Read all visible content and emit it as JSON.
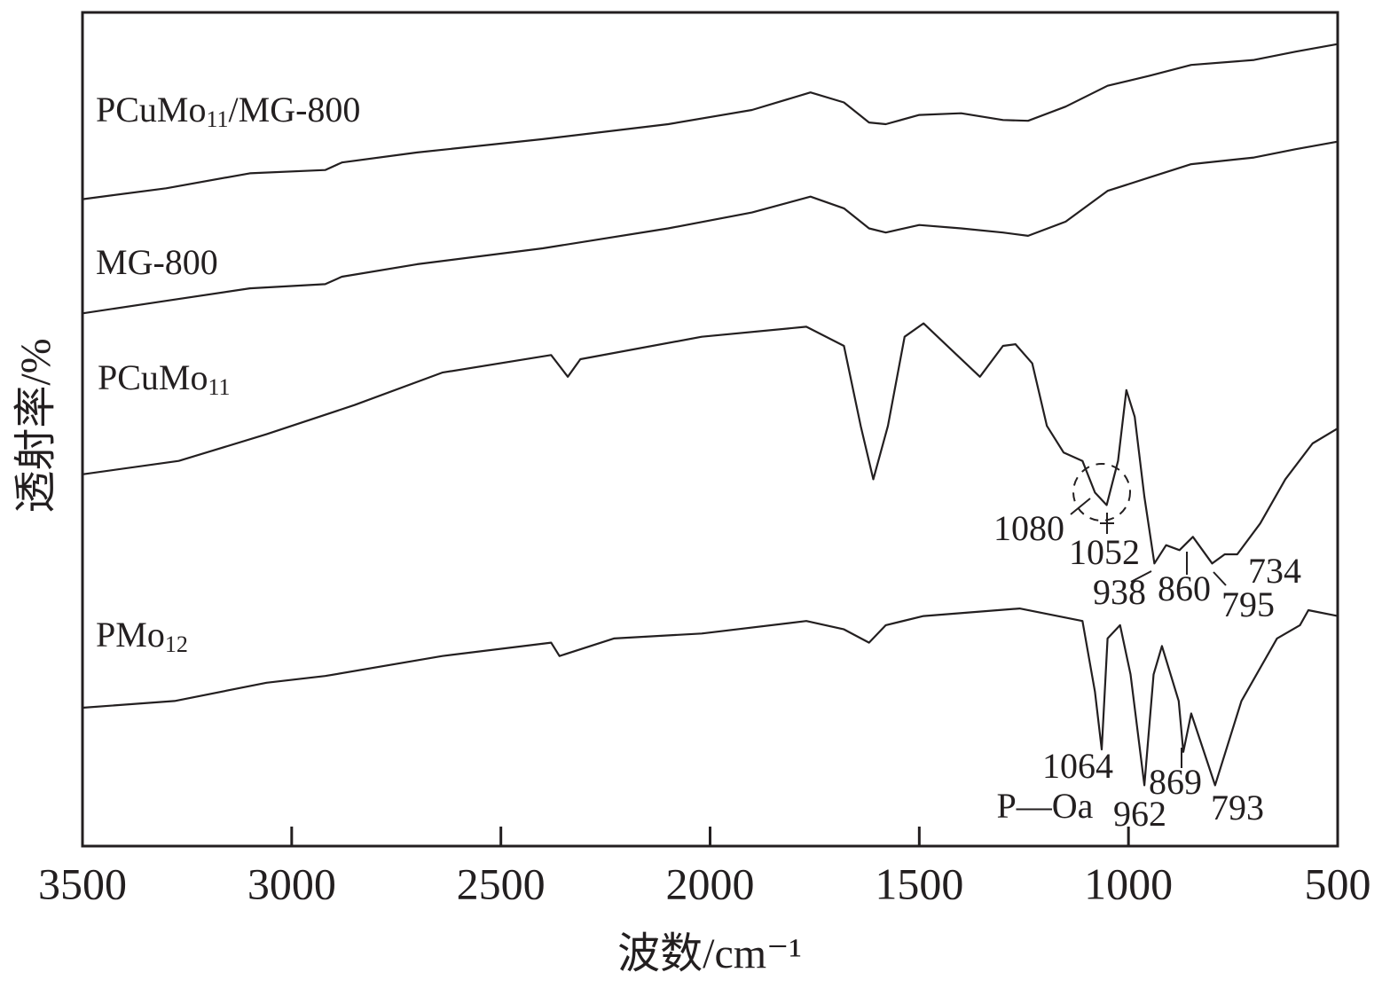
{
  "chart_data": {
    "type": "line",
    "xlabel": "波数/cm⁻¹",
    "ylabel": "透射率/%",
    "xlim": [
      3500,
      500
    ],
    "xticks": [
      3500,
      3000,
      2500,
      2000,
      1500,
      1000,
      500
    ],
    "ylim": [
      0,
      100
    ],
    "series": [
      {
        "name": "PCuMo11/MG-800",
        "color": "#231f20",
        "x": [
          3500,
          3300,
          3100,
          2920,
          2880,
          2700,
          2400,
          2100,
          1900,
          1760,
          1680,
          1620,
          1580,
          1500,
          1400,
          1300,
          1240,
          1150,
          1050,
          950,
          850,
          700,
          600,
          500
        ],
        "values": [
          77.6,
          78.9,
          80.7,
          81.1,
          82.0,
          83.2,
          84.8,
          86.6,
          88.3,
          90.4,
          89.2,
          86.8,
          86.6,
          87.7,
          87.9,
          87.1,
          87.0,
          88.7,
          91.2,
          92.4,
          93.7,
          94.3,
          95.3,
          96.2
        ]
      },
      {
        "name": "MG-800",
        "color": "#231f20",
        "x": [
          3500,
          3300,
          3100,
          2920,
          2880,
          2700,
          2400,
          2100,
          1900,
          1760,
          1680,
          1620,
          1580,
          1500,
          1400,
          1300,
          1240,
          1150,
          1050,
          950,
          850,
          700,
          600,
          500
        ],
        "values": [
          63.9,
          65.4,
          66.9,
          67.4,
          68.3,
          69.8,
          71.7,
          74.1,
          76.0,
          77.9,
          76.5,
          74.1,
          73.6,
          74.5,
          74.1,
          73.6,
          73.2,
          74.9,
          78.6,
          80.2,
          81.8,
          82.6,
          83.6,
          84.5
        ]
      },
      {
        "name": "PCuMo11",
        "color": "#231f20",
        "x": [
          3500,
          3270,
          3060,
          2850,
          2640,
          2380,
          2340,
          2310,
          2020,
          1770,
          1680,
          1640,
          1610,
          1575,
          1535,
          1490,
          1410,
          1355,
          1300,
          1270,
          1230,
          1195,
          1155,
          1110,
          1080,
          1052,
          1025,
          1005,
          985,
          962,
          938,
          910,
          878,
          846,
          800,
          770,
          740,
          685,
          625,
          560,
          500
        ],
        "values": [
          44.6,
          46.2,
          49.4,
          52.9,
          56.8,
          58.9,
          56.3,
          58.4,
          61.1,
          62.3,
          60.0,
          50.4,
          44.0,
          50.4,
          61.1,
          62.7,
          58.9,
          56.3,
          60.0,
          60.2,
          57.9,
          50.4,
          47.2,
          46.2,
          42.4,
          40.9,
          46.2,
          54.7,
          51.5,
          41.9,
          33.9,
          36.1,
          35.5,
          37.1,
          33.9,
          35.0,
          35.0,
          38.7,
          44.0,
          48.3,
          50.1
        ]
      },
      {
        "name": "PMo12",
        "color": "#231f20",
        "x": [
          3500,
          3280,
          3060,
          2920,
          2640,
          2380,
          2360,
          2230,
          2020,
          1770,
          1680,
          1620,
          1580,
          1490,
          1260,
          1110,
          1080,
          1064,
          1050,
          1020,
          995,
          962,
          940,
          920,
          880,
          869,
          850,
          793,
          730,
          645,
          590,
          570,
          500
        ],
        "values": [
          16.6,
          17.4,
          19.6,
          20.4,
          22.8,
          24.4,
          22.8,
          24.9,
          25.5,
          27.0,
          26.0,
          24.4,
          26.5,
          27.6,
          28.5,
          27.0,
          18.5,
          11.6,
          24.9,
          26.5,
          20.6,
          7.3,
          20.6,
          24.0,
          17.4,
          11.3,
          15.9,
          7.3,
          17.4,
          24.9,
          26.5,
          28.3,
          27.6
        ]
      }
    ],
    "annotations": [
      "1080",
      "1052",
      "938",
      "860",
      "795",
      "734",
      "1064",
      "P—Oa",
      "962",
      "869",
      "793"
    ]
  }
}
